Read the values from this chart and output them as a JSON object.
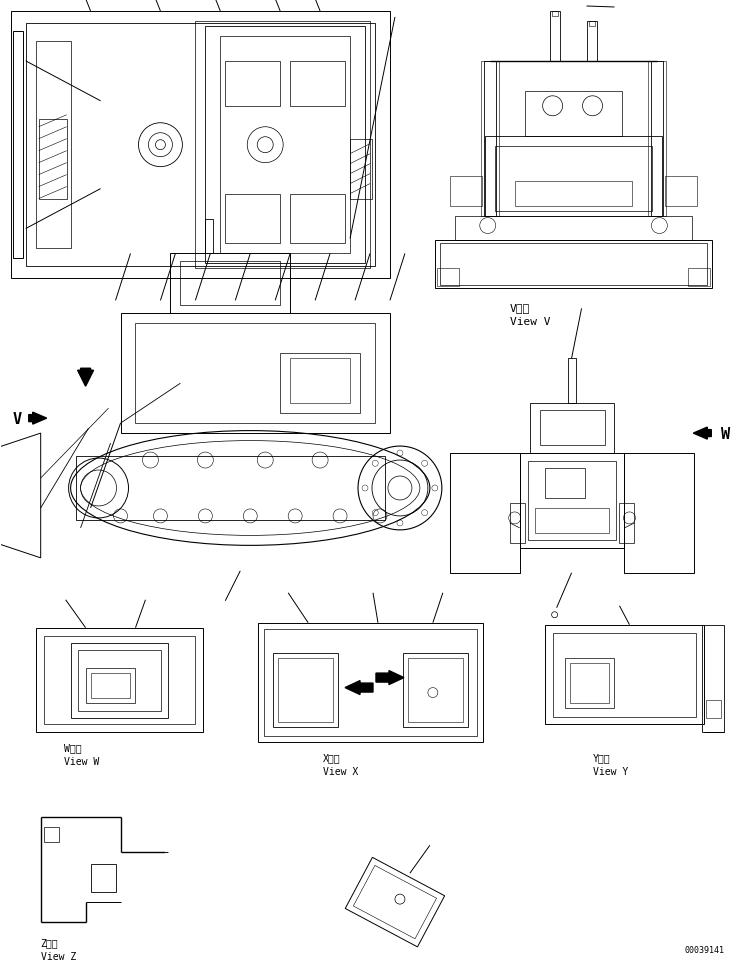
{
  "background_color": "#ffffff",
  "line_color": "#000000",
  "lw": 0.7,
  "part_number": "00039141",
  "font_size": 7,
  "labels": {
    "view_v_kanji": "V　視",
    "view_v": "View V",
    "view_w_kanji": "W　視",
    "view_w": "View W",
    "view_x_kanji": "X　視",
    "view_x": "View X",
    "view_y_kanji": "Y　視",
    "view_y": "View Y",
    "view_z_kanji": "Z　視",
    "view_z": "View Z"
  }
}
